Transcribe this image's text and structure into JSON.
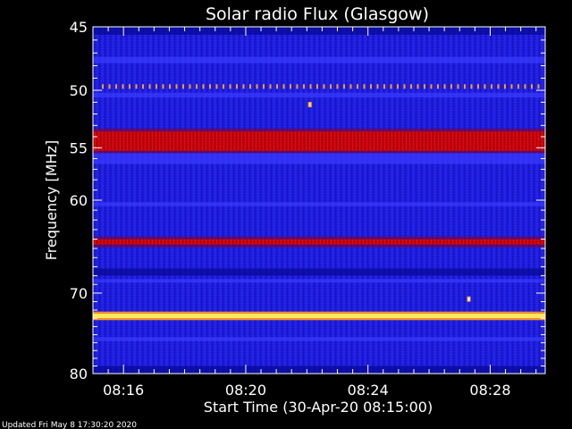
{
  "chart_data": {
    "type": "heatmap",
    "title": "Solar radio Flux (Glasgow)",
    "xlabel": "Start Time (30-Apr-20 08:15:00)",
    "ylabel": "Frequency [MHz]",
    "x_ticks": [
      "08:16",
      "08:20",
      "08:24",
      "08:28"
    ],
    "y_ticks": [
      "45",
      "50",
      "55",
      "60",
      "70",
      "80"
    ],
    "ylim": [
      45,
      80
    ],
    "yscale": "log",
    "xlim_minutes": [
      15.0,
      29.8
    ],
    "colors": {
      "background": "#1d1ad8",
      "deep": "#0a0a9a",
      "band": "#d00000",
      "hot": "#ffe860",
      "white": "#ffffff"
    },
    "bands": [
      {
        "f0": 45.0,
        "f1": 45.6,
        "level": "deep"
      },
      {
        "f0": 47.3,
        "f1": 47.8,
        "level": "mid"
      },
      {
        "f0": 49.5,
        "f1": 49.8,
        "level": "dots"
      },
      {
        "f0": 50.2,
        "f1": 50.6,
        "level": "mid"
      },
      {
        "f0": 53.5,
        "f1": 55.3,
        "level": "band"
      },
      {
        "f0": 55.5,
        "f1": 56.5,
        "level": "mid"
      },
      {
        "f0": 60.2,
        "f1": 60.6,
        "level": "mid"
      },
      {
        "f0": 64.0,
        "f1": 64.6,
        "level": "band"
      },
      {
        "f0": 67.2,
        "f1": 68.0,
        "level": "deep"
      },
      {
        "f0": 68.4,
        "f1": 68.8,
        "level": "mid"
      },
      {
        "f0": 72.4,
        "f1": 73.0,
        "level": "hot"
      },
      {
        "f0": 75.3,
        "f1": 75.8,
        "level": "mid"
      },
      {
        "f0": 79.0,
        "f1": 80.0,
        "level": "deep"
      }
    ],
    "spots": [
      {
        "t": 22.1,
        "f": 51.2,
        "level": "hot"
      },
      {
        "t": 27.3,
        "f": 70.7,
        "level": "white"
      }
    ]
  },
  "footer": {
    "updated": "Updated Fri May  8 17:30:20 2020"
  }
}
